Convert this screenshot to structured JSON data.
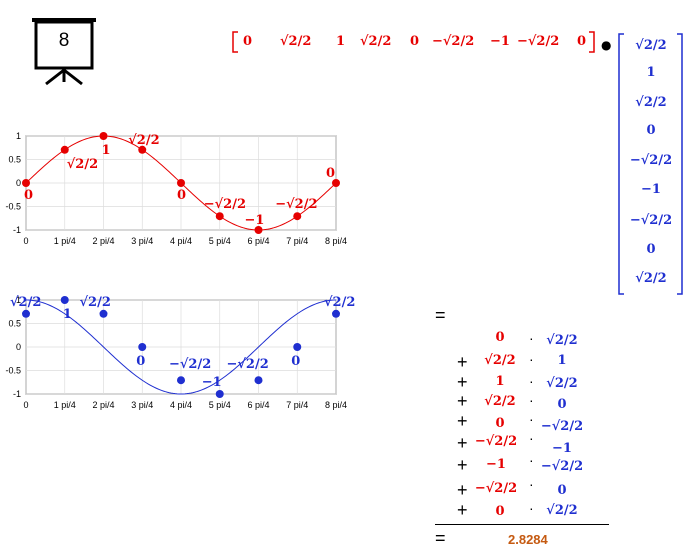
{
  "slide_number": "8",
  "row_vector": [
    "0",
    "√2/2",
    "1",
    "√2/2",
    "0",
    "−√2/2",
    "−1",
    "−√2/2",
    "0"
  ],
  "column_vector": [
    "√2/2",
    "1",
    "√2/2",
    "0",
    "−√2/2",
    "−1",
    "−√2/2",
    "0",
    "√2/2"
  ],
  "dot_symbol": "●",
  "equals": "=",
  "plus": "+",
  "times": "·",
  "result": "2.8284",
  "colors": {
    "red": "#e60000",
    "blue": "#1f2fd0",
    "result": "#c55a11"
  },
  "chart_data": [
    {
      "type": "line",
      "x": [
        0,
        1,
        2,
        3,
        4,
        5,
        6,
        7,
        8
      ],
      "xticks": [
        "0",
        "1 pi/4",
        "2 pi/4",
        "3 pi/4",
        "4 pi/4",
        "5 pi/4",
        "6 pi/4",
        "7 pi/4",
        "8 pi/4"
      ],
      "yticks": [
        "-1",
        "-0.5",
        "0",
        "0.5",
        "1"
      ],
      "ylim": [
        -1,
        1
      ],
      "xlim": [
        0,
        8
      ],
      "grid": true,
      "values": [
        0,
        0.7071,
        1,
        0.7071,
        0,
        -0.7071,
        -1,
        -0.7071,
        0
      ],
      "point_labels": [
        "0",
        "√2/2",
        "1",
        "√2/2",
        "0",
        "−√2/2",
        "−1",
        "−√2/2",
        "0"
      ],
      "color": "#e60000"
    },
    {
      "type": "line",
      "x": [
        0,
        1,
        2,
        3,
        4,
        5,
        6,
        7,
        8
      ],
      "xticks": [
        "0",
        "1 pi/4",
        "2 pi/4",
        "3 pi/4",
        "4 pi/4",
        "5 pi/4",
        "6 pi/4",
        "7 pi/4",
        "8 pi/4"
      ],
      "yticks": [
        "-1",
        "-0.5",
        "0",
        "0.5",
        "1"
      ],
      "ylim": [
        -1,
        1
      ],
      "xlim": [
        0,
        8
      ],
      "grid": true,
      "values": [
        0.7071,
        1,
        0.7071,
        0,
        -0.7071,
        -1,
        -0.7071,
        0,
        0.7071
      ],
      "point_labels": [
        "√2/2",
        "1",
        "√2/2",
        "0",
        "−√2/2",
        "−1",
        "−√2/2",
        "0",
        "√2/2"
      ],
      "color": "#1f2fd0"
    }
  ]
}
